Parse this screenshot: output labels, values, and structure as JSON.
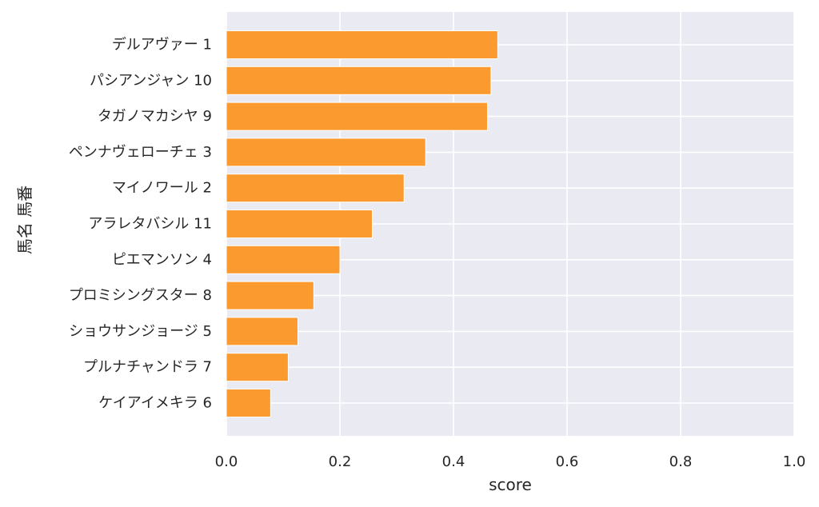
{
  "chart_data": {
    "type": "bar",
    "orientation": "horizontal",
    "categories": [
      "デルアヴァー 1",
      "パシアンジャン 10",
      "タガノマカシヤ 9",
      "ペンナヴェローチェ 3",
      "マイノワール 2",
      "アラレタバシル 11",
      "ピエマンソン 4",
      "プロミシングスター 8",
      "ショウサンジョージ 5",
      "プルナチャンドラ 7",
      "ケイアイメキラ 6"
    ],
    "values": [
      0.478,
      0.466,
      0.46,
      0.351,
      0.313,
      0.257,
      0.2,
      0.154,
      0.126,
      0.109,
      0.078
    ],
    "xlabel": "score",
    "ylabel": "馬名 馬番",
    "xlim": [
      0,
      1
    ],
    "xticks": [
      "0.0",
      "0.2",
      "0.4",
      "0.6",
      "0.8",
      "1.0"
    ],
    "grid": true,
    "colors": {
      "bar": "#fb9a2e",
      "plot_background": "#eaeaf2",
      "grid": "#ffffff",
      "text": "#262626"
    }
  }
}
